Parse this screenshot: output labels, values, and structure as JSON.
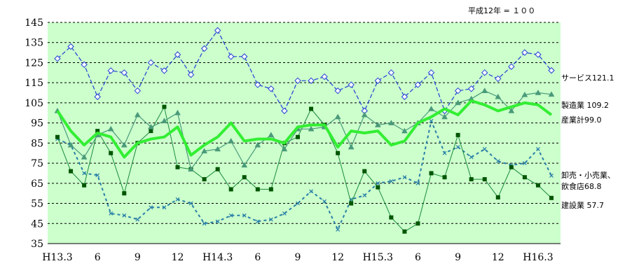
{
  "chart_data": {
    "type": "line",
    "base_note": "平成12年 = １００",
    "ylim": [
      35,
      145
    ],
    "y_ticks": [
      35,
      45,
      55,
      65,
      75,
      85,
      95,
      105,
      115,
      125,
      135,
      145
    ],
    "x_count": 38,
    "x_tick_labels": [
      {
        "i": 0,
        "label": "H13.3"
      },
      {
        "i": 3,
        "label": "6"
      },
      {
        "i": 6,
        "label": "9"
      },
      {
        "i": 9,
        "label": "12"
      },
      {
        "i": 12,
        "label": "H14.3"
      },
      {
        "i": 15,
        "label": "6"
      },
      {
        "i": 18,
        "label": "9"
      },
      {
        "i": 21,
        "label": "12"
      },
      {
        "i": 24,
        "label": "H15.3"
      },
      {
        "i": 27,
        "label": "6"
      },
      {
        "i": 30,
        "label": "9"
      },
      {
        "i": 33,
        "label": "12"
      },
      {
        "i": 36,
        "label": "H16.3"
      }
    ],
    "grid": true,
    "colors": {
      "plot_bg": "#ccffcc",
      "grid": "#000000"
    },
    "series": [
      {
        "key": "services",
        "label": "サービス121.1",
        "color": "#1f3fd6",
        "dash": "6,3",
        "marker": "diamond",
        "width": 1.2,
        "values": [
          127,
          133,
          124,
          108,
          121,
          120,
          111,
          125,
          121,
          129,
          119,
          132,
          141,
          128,
          128,
          114,
          112,
          101,
          116,
          116,
          118,
          111,
          114,
          101,
          116,
          120,
          108,
          114,
          120,
          101,
          111,
          112,
          120,
          117,
          123,
          130,
          129,
          121.1
        ]
      },
      {
        "key": "manufacturing",
        "label": "製造業 109.2",
        "color": "#4a9a7a",
        "dash": "",
        "marker": "triangle",
        "width": 1.2,
        "values": [
          101,
          84,
          78,
          89,
          92,
          84,
          99,
          93,
          96,
          100,
          72,
          81,
          82,
          86,
          74,
          84,
          89,
          82,
          92,
          92,
          93,
          98,
          83,
          99,
          94,
          95,
          91,
          95,
          102,
          98,
          105,
          107,
          111,
          108,
          101,
          109,
          110,
          109.2
        ]
      },
      {
        "key": "industry_total",
        "label": "産業計99.0",
        "color": "#33ee33",
        "dash": "",
        "marker": "none",
        "width": 4,
        "values": [
          101,
          91,
          84,
          90,
          88,
          78,
          85,
          87,
          88,
          93,
          79,
          84,
          88,
          95,
          86,
          87,
          87,
          85,
          93,
          94,
          94,
          83,
          91,
          90,
          91,
          84,
          86,
          95,
          98,
          102,
          99,
          106,
          104,
          101,
          103,
          105,
          104,
          99.0
        ]
      },
      {
        "key": "wholesale_retail",
        "label_lines": [
          "卸売・小売業、",
          "飲食店68.8"
        ],
        "color": "#2a7fa8",
        "dash": "4,4",
        "marker": "x",
        "width": 2,
        "values": [
          87,
          84,
          70,
          69,
          50,
          49,
          47,
          53,
          53,
          57,
          55,
          45,
          46,
          49,
          49,
          46,
          47,
          50,
          55,
          61,
          56,
          42,
          57,
          59,
          65,
          66,
          68,
          65,
          96,
          80,
          83,
          78,
          82,
          76,
          74,
          75,
          82,
          68.8
        ]
      },
      {
        "key": "construction",
        "label": "建設業  57.7",
        "color": "#1a8a3a",
        "marker_color": "#005500",
        "dash": "",
        "marker": "square",
        "width": 1,
        "values": [
          88,
          71,
          64,
          91,
          80,
          60,
          85,
          91,
          103,
          73,
          72,
          67,
          72,
          62,
          68,
          62,
          62,
          85,
          88,
          102,
          94,
          80,
          55,
          71,
          63,
          48,
          41,
          45,
          70,
          68,
          89,
          67,
          67,
          58,
          73,
          68,
          64,
          57.7
        ]
      }
    ]
  }
}
